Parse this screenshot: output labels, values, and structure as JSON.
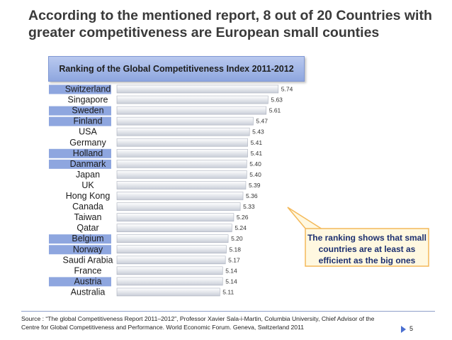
{
  "slide": {
    "title": "According to the mentioned report, 8 out of 20 Countries with greater competitiveness are European small counties",
    "page_number": "5"
  },
  "chart_header": "Ranking of the Global Competitiveness Index 2011-2012",
  "callout": {
    "text": "The ranking shows that small countries are at least as efficient as the big ones"
  },
  "source": "Source : “The global Competitiveness Report 2011–2012”, Professor Xavier Sala-i-Martin, Columbia University, Chief Advisor of the Centre for Global Competitiveness and Performance. World Economic Forum. Geneva, Switzerland 2011",
  "colors": {
    "accent": "#4a6fd0",
    "highlight": "#8ea6df",
    "bar_start": "#ffffff",
    "bar_end": "#c9ced8",
    "callout_fill": "#fff8e0",
    "callout_border": "#f4b95a"
  },
  "chart_data": {
    "type": "bar",
    "orientation": "horizontal",
    "categories": [
      "Switzerland",
      "Singapore",
      "Sweden",
      "Finland",
      "USA",
      "Germany",
      "Holland",
      "Danmark",
      "Japan",
      "UK",
      "Hong Kong",
      "Canada",
      "Taiwan",
      "Qatar",
      "Belgium",
      "Norway",
      "Saudi Arabia",
      "France",
      "Austria",
      "Australia"
    ],
    "values": [
      5.74,
      5.63,
      5.61,
      5.47,
      5.43,
      5.41,
      5.41,
      5.4,
      5.4,
      5.39,
      5.36,
      5.33,
      5.26,
      5.24,
      5.2,
      5.18,
      5.17,
      5.14,
      5.14,
      5.11
    ],
    "value_labels": [
      "5.74",
      "5.63",
      "5.61",
      "5.47",
      "5.43",
      "5.41",
      "5.41",
      "5.40",
      "5.40",
      "5.39",
      "5.36",
      "5.33",
      "5.26",
      "5.24",
      "5.20",
      "5.18",
      "5.17",
      "5.14",
      "5.14",
      "5.11"
    ],
    "highlighted_categories": [
      "Switzerland",
      "Sweden",
      "Finland",
      "Holland",
      "Danmark",
      "Belgium",
      "Norway",
      "Austria"
    ],
    "title": "Ranking of the Global Competitiveness Index 2011-2012",
    "xlabel": "",
    "ylabel": "",
    "grid": false,
    "legend": "none"
  }
}
